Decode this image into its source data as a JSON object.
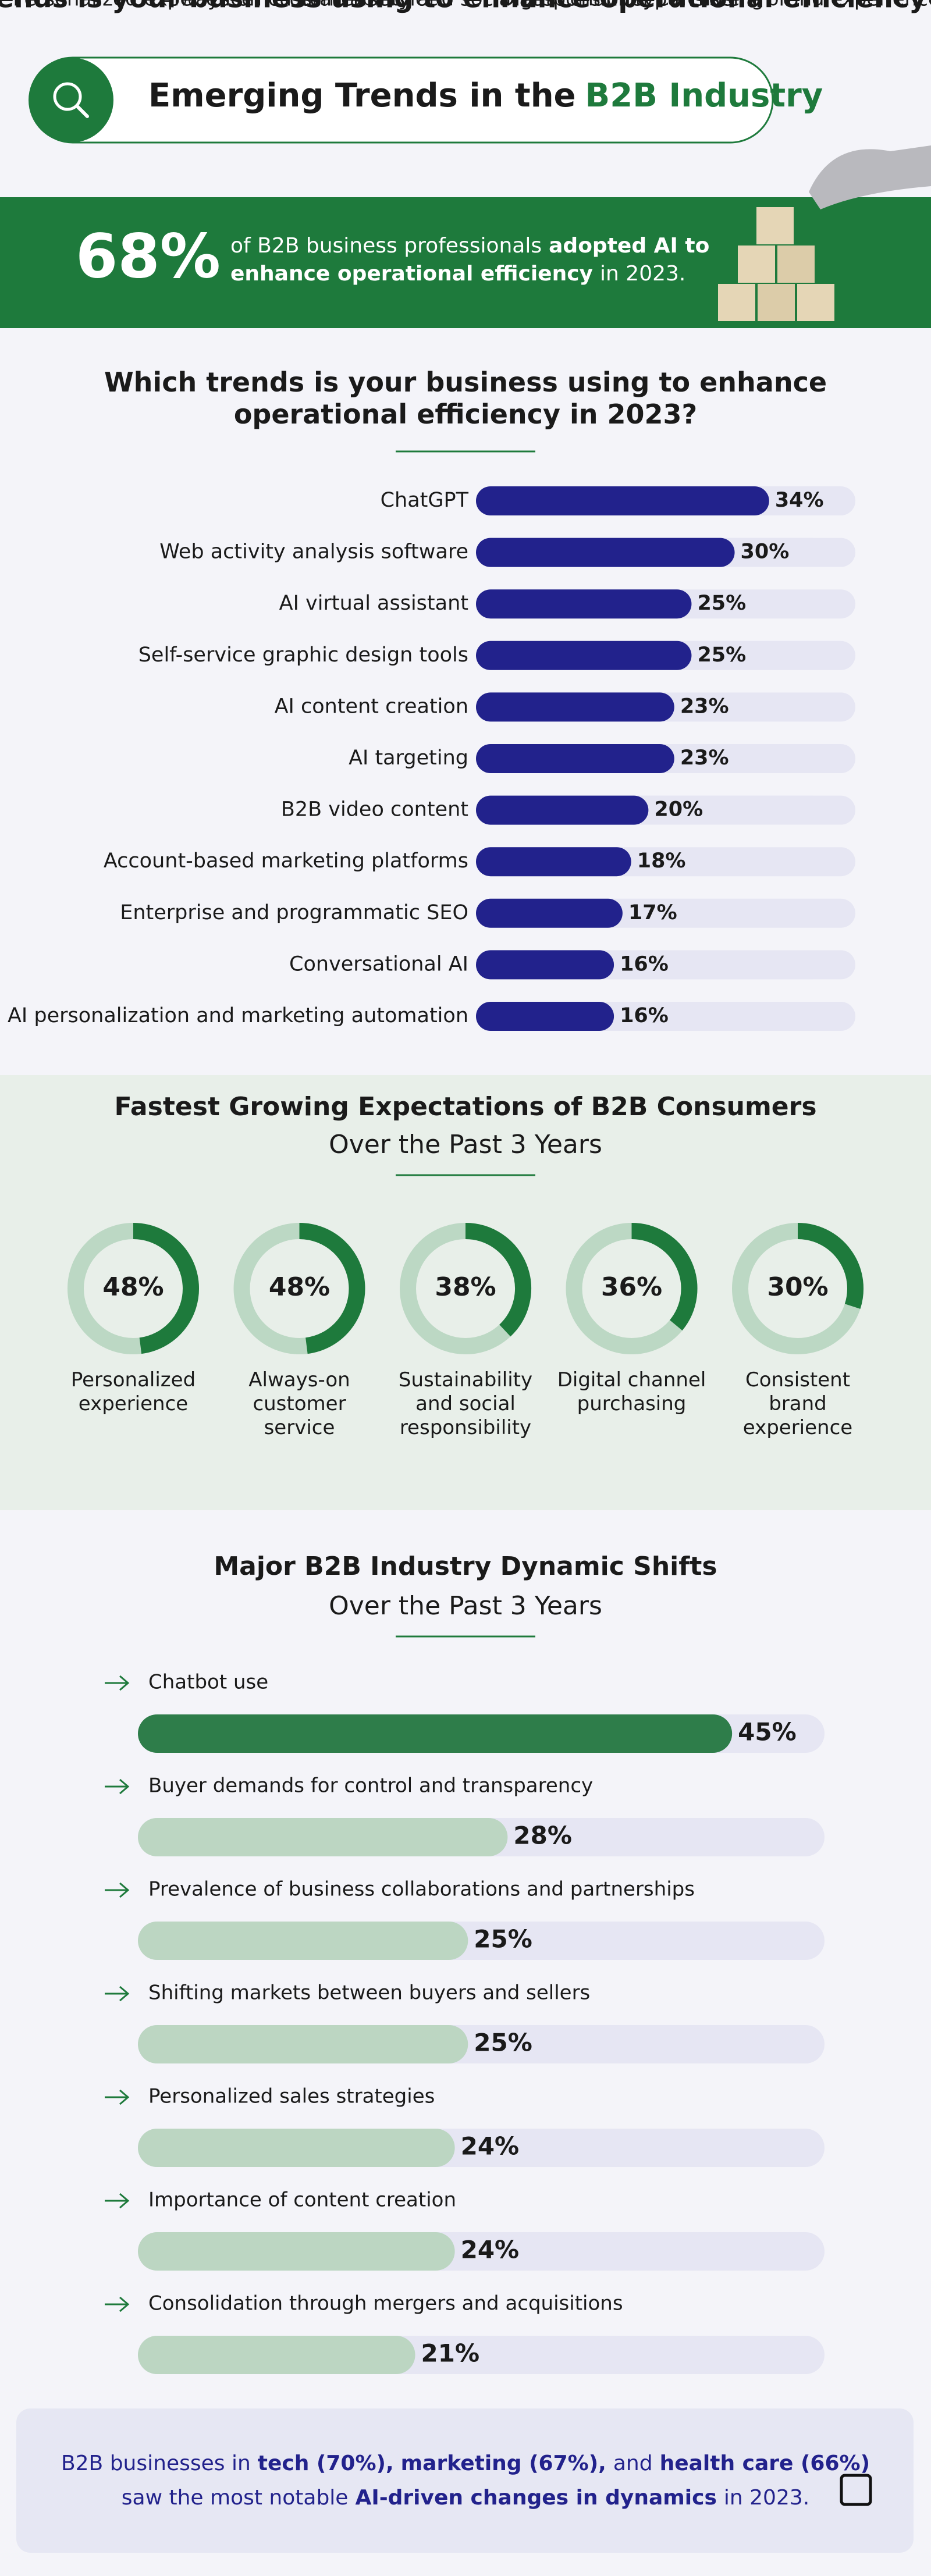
{
  "header": {
    "title": "Emerging Trends in the",
    "title_highlight": "B2B Industry"
  },
  "banner": {
    "stat": "68%",
    "parts": [
      "of B2B business professionals",
      "adopted AI to",
      "enhance operational efficiency",
      "in 2023."
    ]
  },
  "chart_data": [
    {
      "type": "bar",
      "title": "Which trends is your business using to enhance operational efficiency in 2023?",
      "categories": [
        "ChatGPT",
        "Web activity analysis software",
        "AI virtual assistant",
        "Self-service graphic design tools",
        "AI content creation",
        "AI targeting",
        "B2B video content",
        "Account-based marketing platforms",
        "Enterprise and programmatic SEO",
        "Conversational AI",
        "AI personalization and marketing automation"
      ],
      "values": [
        34,
        30,
        25,
        25,
        23,
        23,
        20,
        18,
        17,
        16,
        16
      ],
      "value_labels": [
        "34%",
        "30%",
        "25%",
        "25%",
        "23%",
        "23%",
        "20%",
        "18%",
        "17%",
        "16%",
        "16%"
      ],
      "color": "#22228c",
      "xlim": [
        0,
        44
      ]
    },
    {
      "type": "donut",
      "title": "Fastest Growing Expectations of B2B Consumers",
      "subtitle": "Over the Past 3 Years",
      "categories": [
        "Personalized experience",
        "Always-on customer service",
        "Sustainability and social responsibility",
        "Digital channel purchasing",
        "Consistent brand experience"
      ],
      "values": [
        48,
        48,
        38,
        36,
        30
      ],
      "value_labels": [
        "48%",
        "48%",
        "38%",
        "36%",
        "30%"
      ],
      "color": "#1e7a3c"
    },
    {
      "type": "bar",
      "title": "Major B2B Industry Dynamic Shifts",
      "subtitle": "Over the Past 3 Years",
      "categories": [
        "Chatbot use",
        "Buyer demands for control and transparency",
        "Prevalence of business collaborations and partnerships",
        "Shifting markets between buyers and sellers",
        "Personalized sales strategies",
        "Importance of content creation",
        "Consolidation through mergers and acquisitions"
      ],
      "values": [
        45,
        28,
        25,
        25,
        24,
        24,
        21
      ],
      "value_labels": [
        "45%",
        "28%",
        "25%",
        "25%",
        "24%",
        "24%",
        "21%"
      ],
      "colors": [
        "#2e7d4a",
        "#bcd6c2",
        "#bcd6c2",
        "#bcd6c2",
        "#bcd6c2",
        "#bcd6c2",
        "#bcd6c2"
      ],
      "xlim": [
        0,
        52
      ]
    }
  ],
  "footer": {
    "parts": [
      "B2B businesses in",
      "tech (70%),",
      "marketing (67%),",
      "and",
      "health care (66%)",
      "saw the most notable",
      "AI-driven changes in dynamics",
      "in 2023."
    ]
  }
}
